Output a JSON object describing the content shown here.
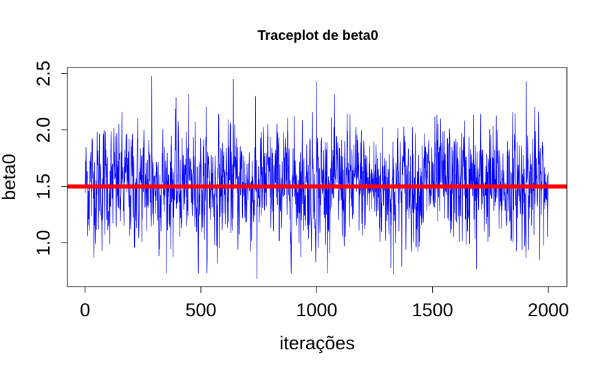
{
  "chart_data": {
    "type": "line",
    "title": "Traceplot de beta0",
    "xlabel": "iterações",
    "ylabel": "beta0",
    "xlim": [
      1,
      2000
    ],
    "ylim": [
      0.68,
      2.48
    ],
    "x_ticks": [
      0,
      500,
      1000,
      1500,
      2000
    ],
    "x_tick_labels": [
      "0",
      "500",
      "1000",
      "1500",
      "2000"
    ],
    "y_ticks": [
      1.0,
      1.5,
      2.0,
      2.5
    ],
    "y_tick_labels": [
      "1.0",
      "1.5",
      "2.0",
      "2.5"
    ],
    "grid": false,
    "series": [
      {
        "kind": "trace",
        "color": "#0000ff",
        "n_iterations": 2000,
        "mean": 1.52,
        "sd": 0.26,
        "min": 0.68,
        "max": 2.48,
        "notable_points": [
          {
            "x": 288,
            "y": 2.48
          },
          {
            "x": 640,
            "y": 2.45
          },
          {
            "x": 742,
            "y": 0.68
          },
          {
            "x": 1000,
            "y": 2.43
          },
          {
            "x": 1330,
            "y": 0.72
          },
          {
            "x": 1905,
            "y": 2.43
          },
          {
            "x": 1690,
            "y": 0.77
          }
        ]
      }
    ],
    "reference_lines": [
      {
        "orientation": "horizontal",
        "y": 1.5,
        "color": "#ff0000"
      }
    ]
  }
}
